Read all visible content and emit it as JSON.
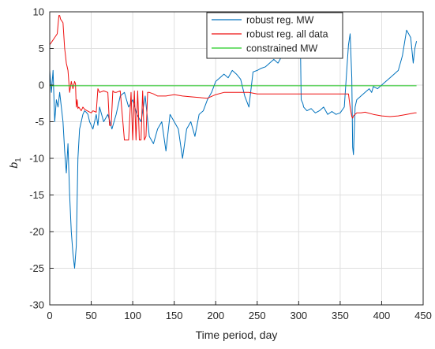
{
  "chart_data": {
    "type": "line",
    "xlabel": "Time period, day",
    "ylabel": "b",
    "ylabel_subscript": "1",
    "xlim": [
      0,
      450
    ],
    "ylim": [
      -30,
      10
    ],
    "xticks": [
      0,
      50,
      100,
      150,
      200,
      250,
      300,
      350,
      400,
      450
    ],
    "yticks": [
      -30,
      -25,
      -20,
      -15,
      -10,
      -5,
      0,
      5,
      10
    ],
    "grid": true,
    "legend_position": "top-right",
    "series": [
      {
        "name": "robust reg. MW",
        "color": "#0072BD",
        "x": [
          0,
          2,
          4,
          6,
          8,
          10,
          12,
          14,
          16,
          18,
          20,
          22,
          24,
          26,
          28,
          30,
          32,
          34,
          36,
          38,
          40,
          42,
          44,
          46,
          48,
          50,
          52,
          54,
          56,
          58,
          60,
          65,
          70,
          75,
          80,
          85,
          90,
          95,
          100,
          105,
          110,
          115,
          120,
          125,
          130,
          135,
          140,
          145,
          150,
          155,
          160,
          165,
          170,
          175,
          180,
          185,
          190,
          195,
          200,
          205,
          210,
          215,
          220,
          225,
          230,
          235,
          240,
          245,
          250,
          255,
          260,
          265,
          270,
          275,
          280,
          285,
          290,
          295,
          300,
          302,
          303,
          305,
          306,
          310,
          315,
          320,
          325,
          330,
          335,
          340,
          345,
          350,
          355,
          360,
          362,
          364,
          365,
          366,
          368,
          370,
          375,
          380,
          385,
          388,
          390,
          395,
          400,
          405,
          410,
          415,
          420,
          425,
          430,
          435,
          438,
          440,
          442
        ],
        "y": [
          2,
          -1,
          2,
          -5,
          -2,
          -3,
          -1,
          -3,
          -5,
          -9,
          -12,
          -8,
          -15,
          -20,
          -23,
          -25,
          -22,
          -10,
          -6,
          -5,
          -4,
          -3.5,
          -3.7,
          -4,
          -5,
          -5.5,
          -6,
          -5,
          -4,
          -5.5,
          -3,
          -5,
          -4,
          -6,
          -4,
          -1.5,
          -1,
          -3,
          -2,
          -4,
          -5,
          -1.5,
          -7,
          -8,
          -6,
          -5,
          -9,
          -4,
          -5,
          -6,
          -10,
          -6,
          -5,
          -7,
          -4,
          -3.5,
          -2,
          -1,
          0.5,
          1,
          1.5,
          1,
          2,
          1.5,
          0.8,
          -1.5,
          -3,
          1.8,
          2,
          2.3,
          2.5,
          3,
          3.5,
          3,
          4,
          4.5,
          4,
          5,
          6,
          6.5,
          -2,
          -2.5,
          -3,
          -3.5,
          -3.2,
          -3.8,
          -3.5,
          -3,
          -4,
          -3.6,
          -4,
          -3.8,
          -3,
          5.5,
          7,
          1,
          -8.5,
          -9.5,
          -3,
          -2,
          -1.5,
          -1,
          -0.5,
          -1,
          -0.2,
          -0.5,
          0,
          0.5,
          1,
          1.5,
          2,
          4,
          7.5,
          6.5,
          3,
          5,
          6
        ]
      },
      {
        "name": "robust reg. all data",
        "color": "#EE1111",
        "x": [
          0,
          3,
          6,
          9,
          11,
          12,
          13,
          16,
          18,
          19,
          20,
          22,
          24,
          26,
          28,
          30,
          31,
          32,
          33,
          34,
          35,
          38,
          40,
          42,
          45,
          50,
          52,
          54,
          56,
          58,
          60,
          65,
          70,
          72,
          74,
          76,
          78,
          80,
          85,
          90,
          95,
          98,
          100,
          102,
          104,
          106,
          108,
          110,
          112,
          114,
          116,
          118,
          120,
          125,
          130,
          140,
          150,
          160,
          170,
          180,
          190,
          200,
          210,
          220,
          230,
          240,
          250,
          260,
          270,
          280,
          290,
          300,
          310,
          320,
          330,
          340,
          350,
          355,
          360,
          362,
          364,
          365,
          366,
          370,
          375,
          380,
          390,
          400,
          410,
          420,
          430,
          440,
          442
        ],
        "y": [
          5.5,
          6,
          6.5,
          7,
          9.5,
          9.5,
          9,
          8.5,
          5,
          4,
          3,
          2,
          -1,
          0.5,
          -0.5,
          0.5,
          0.2,
          -3,
          -2,
          -3.2,
          -3,
          -3.5,
          -3,
          -3.3,
          -3.5,
          -3.8,
          -3.5,
          -3.6,
          -3.7,
          -0.5,
          -1,
          -0.8,
          -1,
          -5.5,
          -5.5,
          -0.8,
          -1,
          -1,
          -0.8,
          -7.5,
          -7.5,
          -1,
          -7.5,
          -0.8,
          -7.5,
          -0.8,
          -7.5,
          -7.5,
          -0.8,
          -7.5,
          -7,
          -1,
          -1,
          -1.2,
          -1.5,
          -1.5,
          -1.3,
          -1.5,
          -1.6,
          -1.7,
          -1.8,
          -1.3,
          -1,
          -1,
          -1,
          -1,
          -1.2,
          -1.2,
          -1.2,
          -1.2,
          -1.2,
          -1.2,
          -1.2,
          -1.2,
          -1.2,
          -1.2,
          -1.2,
          -1.2,
          -1.2,
          -3,
          -4.3,
          -4.5,
          -4.2,
          -3.8,
          -3.8,
          -3.7,
          -4,
          -4.2,
          -4.3,
          -4.2,
          -4,
          -3.8,
          -3.8
        ]
      },
      {
        "name": "constrained MW",
        "color": "#22CC22",
        "x": [
          0,
          442
        ],
        "y": [
          -0.1,
          -0.1
        ]
      }
    ]
  }
}
